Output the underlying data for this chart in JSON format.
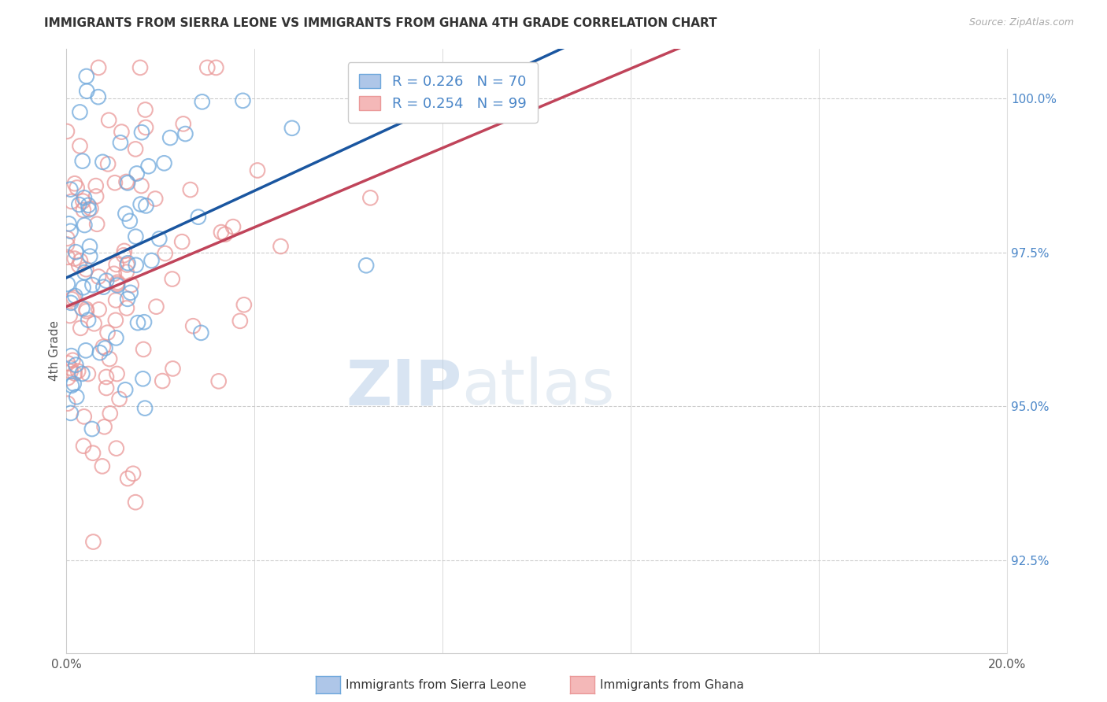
{
  "title": "IMMIGRANTS FROM SIERRA LEONE VS IMMIGRANTS FROM GHANA 4TH GRADE CORRELATION CHART",
  "source": "Source: ZipAtlas.com",
  "ylabel": "4th Grade",
  "yaxis_labels": [
    "92.5%",
    "95.0%",
    "97.5%",
    "100.0%"
  ],
  "yaxis_values": [
    92.5,
    95.0,
    97.5,
    100.0
  ],
  "xmin": 0.0,
  "xmax": 20.0,
  "ymin": 91.0,
  "ymax": 100.8,
  "legend_blue_label": "R = 0.226   N = 70",
  "legend_pink_label": "R = 0.254   N = 99",
  "blue_color": "#6fa8dc",
  "pink_color": "#ea9999",
  "blue_line_color": "#1a56a0",
  "pink_line_color": "#c0445a",
  "blue_face_color": "#aec6e8",
  "pink_face_color": "#f4b8b8",
  "watermark_zip": "ZIP",
  "watermark_atlas": "atlas",
  "legend_text_color": "#4a86c8",
  "bottom_legend_blue": "Immigrants from Sierra Leone",
  "bottom_legend_pink": "Immigrants from Ghana"
}
